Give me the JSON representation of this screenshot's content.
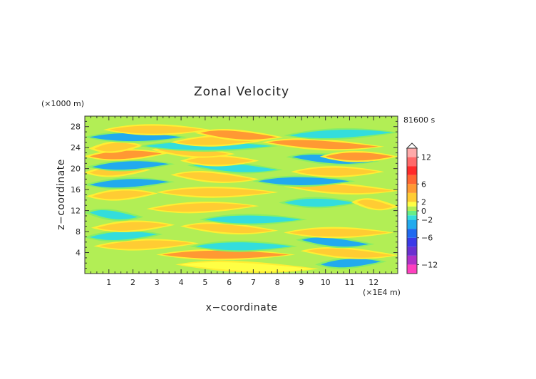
{
  "chart_data": {
    "type": "heatmap",
    "title": "Zonal Velocity",
    "xlabel": "x−coordinate",
    "ylabel": "z−coordinate",
    "x_unit": "(×1E4 m)",
    "y_unit": "(×1000 m)",
    "time_label": "81600 s",
    "xlim": [
      0,
      13
    ],
    "ylim": [
      0,
      30
    ],
    "x_ticks": [
      1,
      2,
      3,
      4,
      5,
      6,
      7,
      8,
      9,
      10,
      11,
      12
    ],
    "y_ticks": [
      4,
      8,
      12,
      16,
      20,
      24,
      28
    ],
    "colorbar": {
      "labels": [
        "12",
        "6",
        "2",
        "0",
        "−2",
        "−6",
        "−12"
      ],
      "label_values": [
        12,
        6,
        2,
        0,
        -2,
        -6,
        -12
      ],
      "levels": [
        -14,
        -12,
        -10,
        -8,
        -6,
        -4,
        -2,
        -1,
        0,
        1,
        2,
        4,
        6,
        8,
        10,
        12,
        14
      ],
      "colors": [
        "#ff3fbf",
        "#b030c8",
        "#6a30d0",
        "#3a3ae8",
        "#1f6af0",
        "#22aaee",
        "#33dddd",
        "#66ee88",
        "#b2ee55",
        "#ffff44",
        "#ffcc33",
        "#ff9933",
        "#ff6633",
        "#ff2a2a",
        "#ff6a6a",
        "#ffaaaa"
      ]
    },
    "bands": [
      {
        "z": 1.3,
        "x0": 4.0,
        "x1": 9.5,
        "v": 1.5
      },
      {
        "z": 2.0,
        "x0": 9.8,
        "x1": 12.3,
        "v": -2.5
      },
      {
        "z": 3.6,
        "x0": 3.2,
        "x1": 8.5,
        "v": 4
      },
      {
        "z": 3.9,
        "x0": 9.2,
        "x1": 12.8,
        "v": 3
      },
      {
        "z": 5.5,
        "x0": 0.6,
        "x1": 4.5,
        "v": 3
      },
      {
        "z": 5.2,
        "x0": 4.6,
        "x1": 8.6,
        "v": -2
      },
      {
        "z": 6.0,
        "x0": 9.0,
        "x1": 11.8,
        "v": -3
      },
      {
        "z": 7.2,
        "x0": 0.2,
        "x1": 3.0,
        "v": -2
      },
      {
        "z": 7.8,
        "x0": 8.5,
        "x1": 12.6,
        "v": 3
      },
      {
        "z": 8.6,
        "x0": 4.2,
        "x1": 7.8,
        "v": 3
      },
      {
        "z": 9.0,
        "x0": 0.5,
        "x1": 3.5,
        "v": 3
      },
      {
        "z": 10.3,
        "x0": 5.0,
        "x1": 9.0,
        "v": -1.5
      },
      {
        "z": 11.2,
        "x0": 0.2,
        "x1": 2.2,
        "v": -2
      },
      {
        "z": 12.6,
        "x0": 2.8,
        "x1": 7.0,
        "v": 3
      },
      {
        "z": 13.5,
        "x0": 8.3,
        "x1": 11.2,
        "v": -2
      },
      {
        "z": 13.2,
        "x0": 11.3,
        "x1": 12.8,
        "v": 2.5
      },
      {
        "z": 15.0,
        "x0": 0.3,
        "x1": 2.8,
        "v": 3
      },
      {
        "z": 15.5,
        "x0": 3.2,
        "x1": 7.8,
        "v": 2.5
      },
      {
        "z": 16.2,
        "x0": 8.5,
        "x1": 12.8,
        "v": 3
      },
      {
        "z": 17.2,
        "x0": 0.2,
        "x1": 3.5,
        "v": -2.5
      },
      {
        "z": 17.6,
        "x0": 7.2,
        "x1": 11.0,
        "v": -3
      },
      {
        "z": 18.4,
        "x0": 3.8,
        "x1": 7.0,
        "v": 3
      },
      {
        "z": 19.5,
        "x0": 0.2,
        "x1": 2.5,
        "v": 3
      },
      {
        "z": 19.4,
        "x0": 8.8,
        "x1": 12.2,
        "v": 3
      },
      {
        "z": 20.2,
        "x0": 4.5,
        "x1": 8.0,
        "v": -2
      },
      {
        "z": 20.6,
        "x0": 0.3,
        "x1": 3.5,
        "v": -3
      },
      {
        "z": 21.5,
        "x0": 4.2,
        "x1": 7.0,
        "v": 3
      },
      {
        "z": 21.8,
        "x0": 8.6,
        "x1": 12.0,
        "v": -3
      },
      {
        "z": 22.6,
        "x0": 0.2,
        "x1": 3.2,
        "v": 4
      },
      {
        "z": 22.3,
        "x0": 10.0,
        "x1": 12.8,
        "v": 4
      },
      {
        "z": 23.2,
        "x0": 3.0,
        "x1": 6.0,
        "v": 3.5
      },
      {
        "z": 24.1,
        "x0": 0.4,
        "x1": 2.2,
        "v": 3
      },
      {
        "z": 24.3,
        "x0": 2.5,
        "x1": 7.8,
        "v": -2
      },
      {
        "z": 24.6,
        "x0": 7.6,
        "x1": 12.2,
        "v": 4
      },
      {
        "z": 25.3,
        "x0": 3.8,
        "x1": 7.5,
        "v": 3
      },
      {
        "z": 26.0,
        "x0": 0.2,
        "x1": 4.0,
        "v": -2.5
      },
      {
        "z": 26.4,
        "x0": 4.8,
        "x1": 8.0,
        "v": 4
      },
      {
        "z": 26.6,
        "x0": 8.5,
        "x1": 12.8,
        "v": -1.5
      },
      {
        "z": 27.4,
        "x0": 1.0,
        "x1": 5.0,
        "v": 3
      }
    ]
  }
}
